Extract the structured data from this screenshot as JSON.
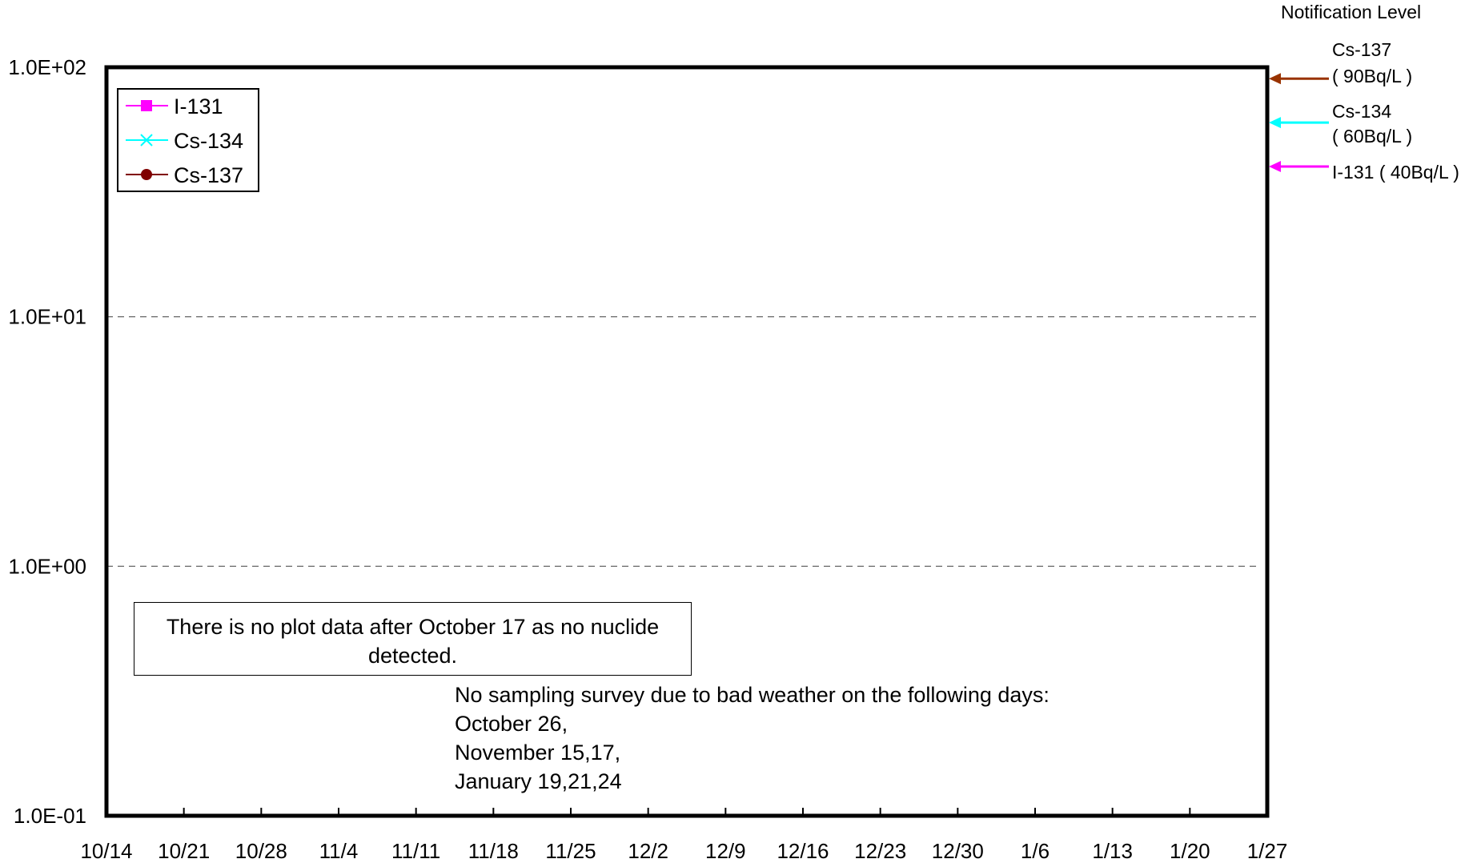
{
  "chart_data": {
    "type": "line",
    "x_tick_labels": [
      "10/14",
      "10/21",
      "10/28",
      "11/4",
      "11/11",
      "11/18",
      "11/25",
      "12/2",
      "12/9",
      "12/16",
      "12/23",
      "12/30",
      "1/6",
      "1/13",
      "1/20",
      "1/27"
    ],
    "y_scale": "log",
    "ylim": [
      0.1,
      100
    ],
    "y_tick_labels": [
      "1.0E+02",
      "1.0E+01",
      "1.0E+00",
      "1.0E-01"
    ],
    "y_tick_values": [
      100,
      10,
      1,
      0.1
    ],
    "grid": "horizontal dashed",
    "legend_position": "top-left",
    "series": [
      {
        "name": "I-131",
        "color": "#ff00ff",
        "marker": "square",
        "values": []
      },
      {
        "name": "Cs-134",
        "color": "#00ffff",
        "marker": "x",
        "values": []
      },
      {
        "name": "Cs-137",
        "color": "#800000",
        "marker": "circle",
        "values": []
      }
    ],
    "notification_levels": {
      "title": "Notification Level",
      "items": [
        {
          "nuclide": "Cs-137",
          "label": "( 90Bq/L )",
          "value": 90,
          "arrow_color": "#993300"
        },
        {
          "nuclide": "Cs-134",
          "label": "( 60Bq/L )",
          "value": 60,
          "arrow_color": "#00ffff"
        },
        {
          "nuclide": "I-131",
          "label": "I-131 ( 40Bq/L )",
          "value": 40,
          "arrow_color": "#ff00ff"
        }
      ]
    },
    "annotations": {
      "no_data": "There is no plot data after October 17 as no nuclide detected.",
      "no_sampling": [
        "No sampling survey due to bad weather on the following days:",
        "October 26,",
        "November 15,17,",
        "January 19,21,24"
      ]
    }
  }
}
